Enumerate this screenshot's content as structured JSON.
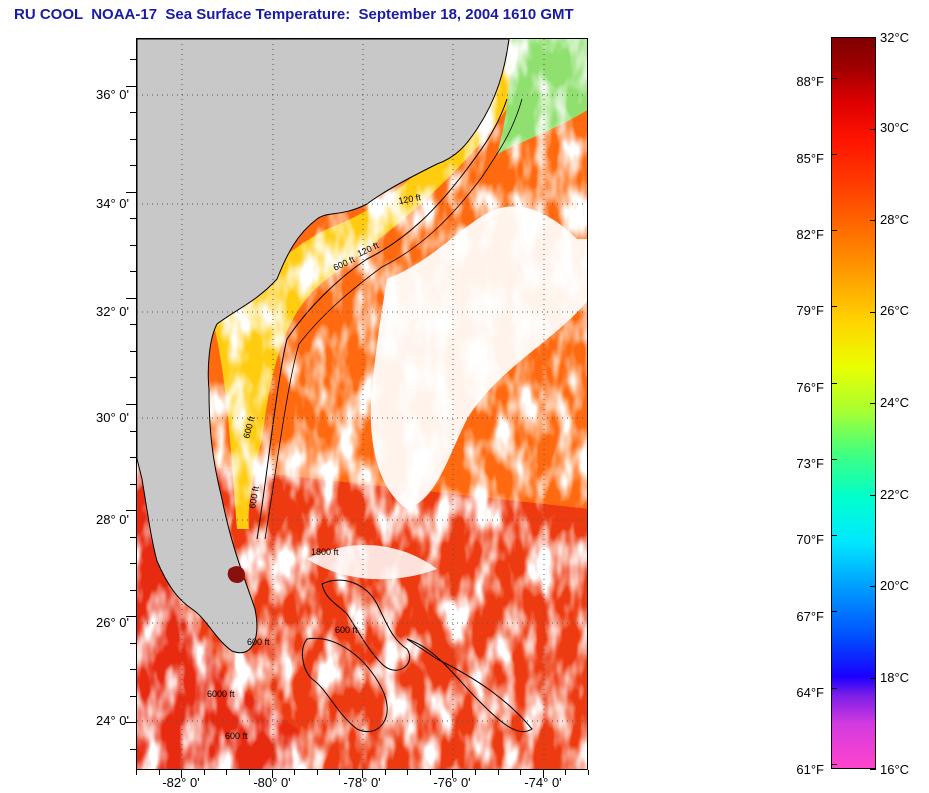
{
  "title": "RU COOL  NOAA-17  Sea Surface Temperature:  September 18, 2004 1610 GMT",
  "map": {
    "lat_labels": [
      "36° 0'",
      "34° 0'",
      "32° 0'",
      "30° 0'",
      "28° 0'",
      "26° 0'",
      "24° 0'"
    ],
    "lon_labels": [
      "-82° 0'",
      "-80° 0'",
      "-78° 0'",
      "-76° 0'",
      "-74° 0'"
    ],
    "lat_values": [
      36,
      34,
      32,
      30,
      28,
      26,
      24
    ],
    "lon_values": [
      -82,
      -80,
      -78,
      -76,
      -74
    ],
    "lat_range": [
      23.1,
      36.9
    ],
    "lon_range": [
      -83.0,
      -73.0
    ],
    "contour_labels": [
      "120 ft",
      "600 ft",
      "120 ft",
      "600 ft",
      "600 ft",
      "1800 ft",
      "600 ft",
      "600 ft",
      "6000 ft",
      "600 ft"
    ],
    "colors": {
      "land": "#c8c8c8",
      "cloud": "#ffffff",
      "shelf_water": "#ffd000",
      "offshore_water": "#ff6a10",
      "gulf_stream": "#ff4a10",
      "south_water": "#ee2010",
      "gulf_water": "#e83a10",
      "cold_patches": "#c000ff"
    }
  },
  "colorbar": {
    "celsius_labels": [
      "32°C",
      "30°C",
      "28°C",
      "26°C",
      "24°C",
      "22°C",
      "20°C",
      "18°C",
      "16°C"
    ],
    "fahrenheit_labels": [
      "88°F",
      "85°F",
      "82°F",
      "79°F",
      "76°F",
      "73°F",
      "70°F",
      "67°F",
      "64°F",
      "61°F"
    ],
    "celsius_range": [
      16,
      32
    ],
    "fahrenheit_ticks": [
      88,
      85,
      82,
      79,
      76,
      73,
      70,
      67,
      64,
      61
    ]
  }
}
